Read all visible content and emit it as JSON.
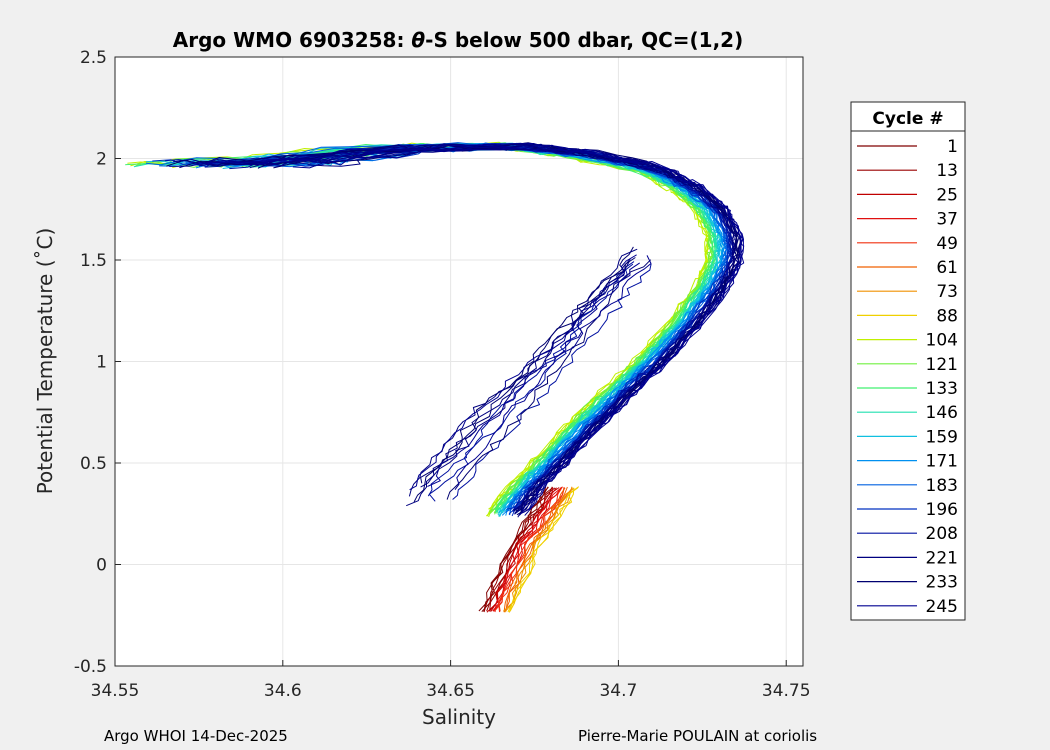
{
  "chart_data": {
    "type": "line",
    "title": {
      "prefix": "Argo WMO 6903258: ",
      "theta": "θ",
      "suffix": "-S below 500 dbar,  QC=(1,2)"
    },
    "xlabel": "Salinity",
    "ylabel": "Potential Temperature (˚C)",
    "xlim": [
      34.55,
      34.755
    ],
    "ylim": [
      -0.5,
      2.5
    ],
    "xticks": [
      34.55,
      34.6,
      34.65,
      34.7,
      34.75
    ],
    "xtick_labels": [
      "34.55",
      "34.6",
      "34.65",
      "34.7",
      "34.75"
    ],
    "yticks": [
      -0.5,
      0,
      0.5,
      1,
      1.5,
      2,
      2.5
    ],
    "ytick_labels": [
      "-0.5",
      "0",
      "0.5",
      "1",
      "1.5",
      "2",
      "2.5"
    ],
    "grid": true,
    "legend": {
      "title": "Cycle #",
      "position": "right",
      "entries": [
        {
          "label": "1",
          "color": "#800000"
        },
        {
          "label": "13",
          "color": "#9a0000"
        },
        {
          "label": "25",
          "color": "#c00000"
        },
        {
          "label": "37",
          "color": "#e01010"
        },
        {
          "label": "49",
          "color": "#f03010"
        },
        {
          "label": "61",
          "color": "#f06000"
        },
        {
          "label": "73",
          "color": "#f09000"
        },
        {
          "label": "88",
          "color": "#f0d000"
        },
        {
          "label": "104",
          "color": "#c0f000"
        },
        {
          "label": "121",
          "color": "#70f040"
        },
        {
          "label": "133",
          "color": "#40f070"
        },
        {
          "label": "146",
          "color": "#20e0b0"
        },
        {
          "label": "159",
          "color": "#10c0e0"
        },
        {
          "label": "171",
          "color": "#0090f0"
        },
        {
          "label": "183",
          "color": "#0060e0"
        },
        {
          "label": "196",
          "color": "#0030c0"
        },
        {
          "label": "208",
          "color": "#0010a0"
        },
        {
          "label": "221",
          "color": "#000080"
        },
        {
          "label": "233",
          "color": "#000070"
        },
        {
          "label": "245",
          "color": "#000090"
        }
      ]
    },
    "series_shape": {
      "start_segment": [
        [
          34.59,
          1.97
        ],
        [
          34.61,
          1.99
        ],
        [
          34.64,
          2.05
        ],
        [
          34.67,
          2.06
        ],
        [
          34.69,
          2.02
        ],
        [
          34.71,
          1.95
        ],
        [
          34.72,
          1.86
        ],
        [
          34.728,
          1.75
        ],
        [
          34.732,
          1.62
        ],
        [
          34.732,
          1.5
        ],
        [
          34.728,
          1.36
        ],
        [
          34.72,
          1.18
        ],
        [
          34.71,
          1.0
        ],
        [
          34.7,
          0.84
        ],
        [
          34.69,
          0.68
        ],
        [
          34.68,
          0.5
        ],
        [
          34.672,
          0.36
        ],
        [
          34.665,
          0.22
        ]
      ],
      "deep_segment": [
        [
          34.684,
          0.38
        ],
        [
          34.673,
          0.1
        ],
        [
          34.663,
          -0.28
        ]
      ],
      "lower_band_series": [
        "1",
        "13",
        "25",
        "37",
        "49",
        "61",
        "73",
        "88"
      ],
      "upper_band_series": [
        "104",
        "121",
        "133",
        "146",
        "159",
        "171",
        "183",
        "196"
      ],
      "dark_excursion_series": [
        "208",
        "221",
        "233",
        "245"
      ]
    }
  },
  "footer": {
    "left": "Argo WHOI 14-Dec-2025",
    "right": "Pierre-Marie POULAIN at coriolis"
  }
}
